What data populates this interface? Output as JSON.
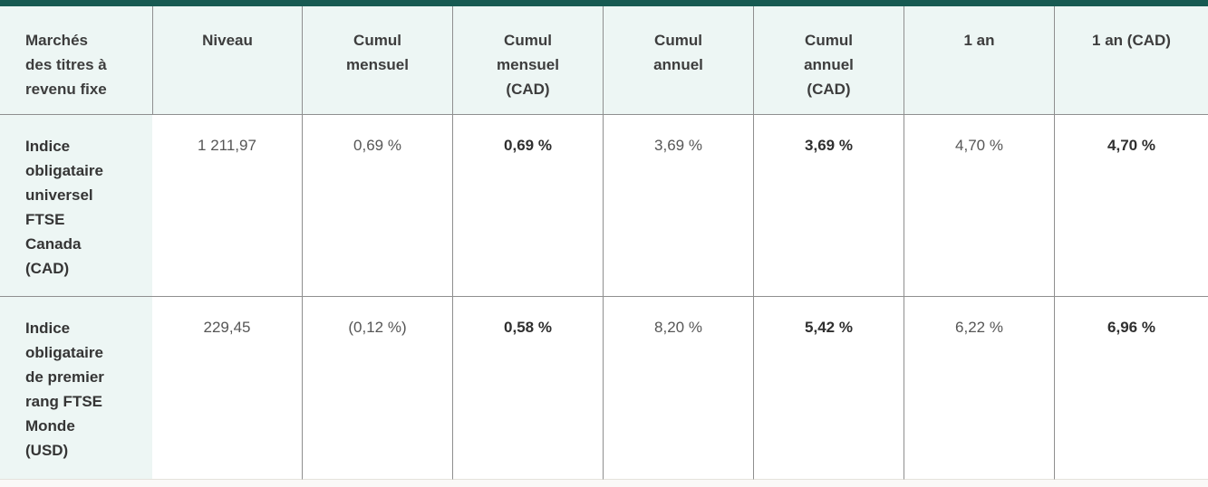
{
  "colors": {
    "topbar_bg": "#175a52",
    "header_bg": "#edf6f4",
    "mint_bg": "#edf6f4",
    "divider": "#8f8f8f",
    "header_text": "#3d3d3d",
    "label_text": "#353535",
    "value_text": "#565656",
    "bold_text": "#2f2f2f",
    "bottom_border": "#e5e2dc",
    "below_bg": "#faf9f7"
  },
  "table": {
    "headers": [
      {
        "label": "Marchés\ndes titres à\nrevenu fixe"
      },
      {
        "label": "Niveau"
      },
      {
        "label": "Cumul\nmensuel"
      },
      {
        "label": "Cumul\nmensuel\n(CAD)"
      },
      {
        "label": "Cumul\nannuel"
      },
      {
        "label": "Cumul\nannuel\n(CAD)"
      },
      {
        "label": "1 an"
      },
      {
        "label": "1 an (CAD)"
      }
    ],
    "rows": [
      {
        "label": "Indice\nobligataire\nuniversel\nFTSE\nCanada\n(CAD)",
        "cells": [
          {
            "value": "1 211,97",
            "bold": false
          },
          {
            "value": "0,69 %",
            "bold": false
          },
          {
            "value": "0,69 %",
            "bold": true
          },
          {
            "value": "3,69 %",
            "bold": false
          },
          {
            "value": "3,69 %",
            "bold": true
          },
          {
            "value": "4,70 %",
            "bold": false
          },
          {
            "value": "4,70 %",
            "bold": true
          }
        ]
      },
      {
        "label": "Indice\nobligataire\nde premier\nrang FTSE\nMonde\n(USD)",
        "cells": [
          {
            "value": "229,45",
            "bold": false
          },
          {
            "value": "(0,12 %)",
            "bold": false
          },
          {
            "value": "0,58 %",
            "bold": true
          },
          {
            "value": "8,20 %",
            "bold": false
          },
          {
            "value": "5,42 %",
            "bold": true
          },
          {
            "value": "6,22 %",
            "bold": false
          },
          {
            "value": "6,96 %",
            "bold": true
          }
        ]
      }
    ]
  }
}
